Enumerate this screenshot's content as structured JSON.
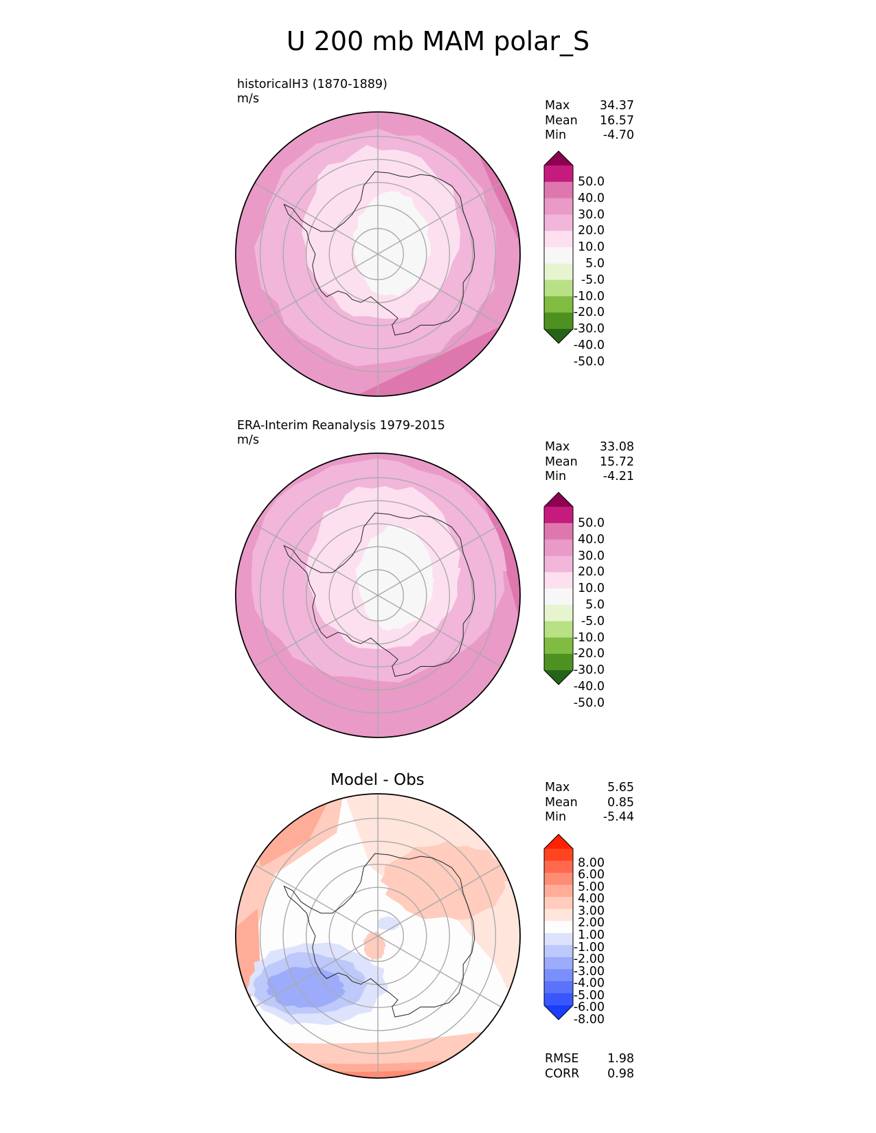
{
  "title": "U 200 mb MAM polar_S",
  "panels": [
    {
      "label": "historicalH3 (1870-1889)",
      "units": "m/s",
      "stats": [
        {
          "name": "Max",
          "value": "34.37"
        },
        {
          "name": "Mean",
          "value": "16.57"
        },
        {
          "name": "Min",
          "value": "-4.70"
        }
      ]
    },
    {
      "label": "ERA-Interim Reanalysis 1979-2015",
      "units": "m/s",
      "stats": [
        {
          "name": "Max",
          "value": "33.08"
        },
        {
          "name": "Mean",
          "value": "15.72"
        },
        {
          "name": "Min",
          "value": "-4.21"
        }
      ]
    },
    {
      "label": "Model - Obs",
      "stats": [
        {
          "name": "Max",
          "value": "5.65"
        },
        {
          "name": "Mean",
          "value": "0.85"
        },
        {
          "name": "Min",
          "value": "-5.44"
        }
      ],
      "metrics": [
        {
          "name": "RMSE",
          "value": "1.98"
        },
        {
          "name": "CORR",
          "value": "0.98"
        }
      ]
    }
  ],
  "chart_data": [
    {
      "type": "heatmap",
      "projection": "south polar stereographic",
      "field": "U 200 mb MAM",
      "panel": "historicalH3 (1870-1889)",
      "units": "m/s",
      "colorbar": {
        "ticks": [
          "50.0",
          "40.0",
          "30.0",
          "20.0",
          "10.0",
          "5.0",
          "-5.0",
          "-10.0",
          "-20.0",
          "-30.0",
          "-40.0",
          "-50.0"
        ],
        "colors": [
          "#8e0152",
          "#c51b7d",
          "#de77ae",
          "#e99ac6",
          "#f1b6da",
          "#fde0ef",
          "#f7f7f7",
          "#e6f5d0",
          "#b8e186",
          "#7fbc41",
          "#4d9221",
          "#276419"
        ]
      },
      "stats": {
        "max": 34.37,
        "mean": 16.57,
        "min": -4.7
      }
    },
    {
      "type": "heatmap",
      "projection": "south polar stereographic",
      "field": "U 200 mb MAM",
      "panel": "ERA-Interim Reanalysis 1979-2015",
      "units": "m/s",
      "colorbar": {
        "ticks": [
          "50.0",
          "40.0",
          "30.0",
          "20.0",
          "10.0",
          "5.0",
          "-5.0",
          "-10.0",
          "-20.0",
          "-30.0",
          "-40.0",
          "-50.0"
        ],
        "colors": [
          "#8e0152",
          "#c51b7d",
          "#de77ae",
          "#e99ac6",
          "#f1b6da",
          "#fde0ef",
          "#f7f7f7",
          "#e6f5d0",
          "#b8e186",
          "#7fbc41",
          "#4d9221",
          "#276419"
        ]
      },
      "stats": {
        "max": 33.08,
        "mean": 15.72,
        "min": -4.21
      }
    },
    {
      "type": "heatmap",
      "projection": "south polar stereographic",
      "field": "U 200 mb MAM",
      "panel": "Model - Obs",
      "colorbar": {
        "ticks": [
          "8.00",
          "6.00",
          "5.00",
          "4.00",
          "3.00",
          "2.00",
          "1.00",
          "-1.00",
          "-2.00",
          "-3.00",
          "-4.00",
          "-5.00",
          "-6.00",
          "-8.00"
        ],
        "colors": [
          "#ff2200",
          "#ff4422",
          "#ff6a4e",
          "#ff8c74",
          "#ffad98",
          "#ffccbd",
          "#ffe5dc",
          "#fdfdfd",
          "#dde3fd",
          "#bdc8fb",
          "#9cacfb",
          "#7b8ffb",
          "#5b73fb",
          "#3a57fd",
          "#1a3cfd"
        ]
      },
      "stats": {
        "max": 5.65,
        "mean": 0.85,
        "min": -5.44
      },
      "metrics": {
        "rmse": 1.98,
        "corr": 0.98
      }
    }
  ]
}
